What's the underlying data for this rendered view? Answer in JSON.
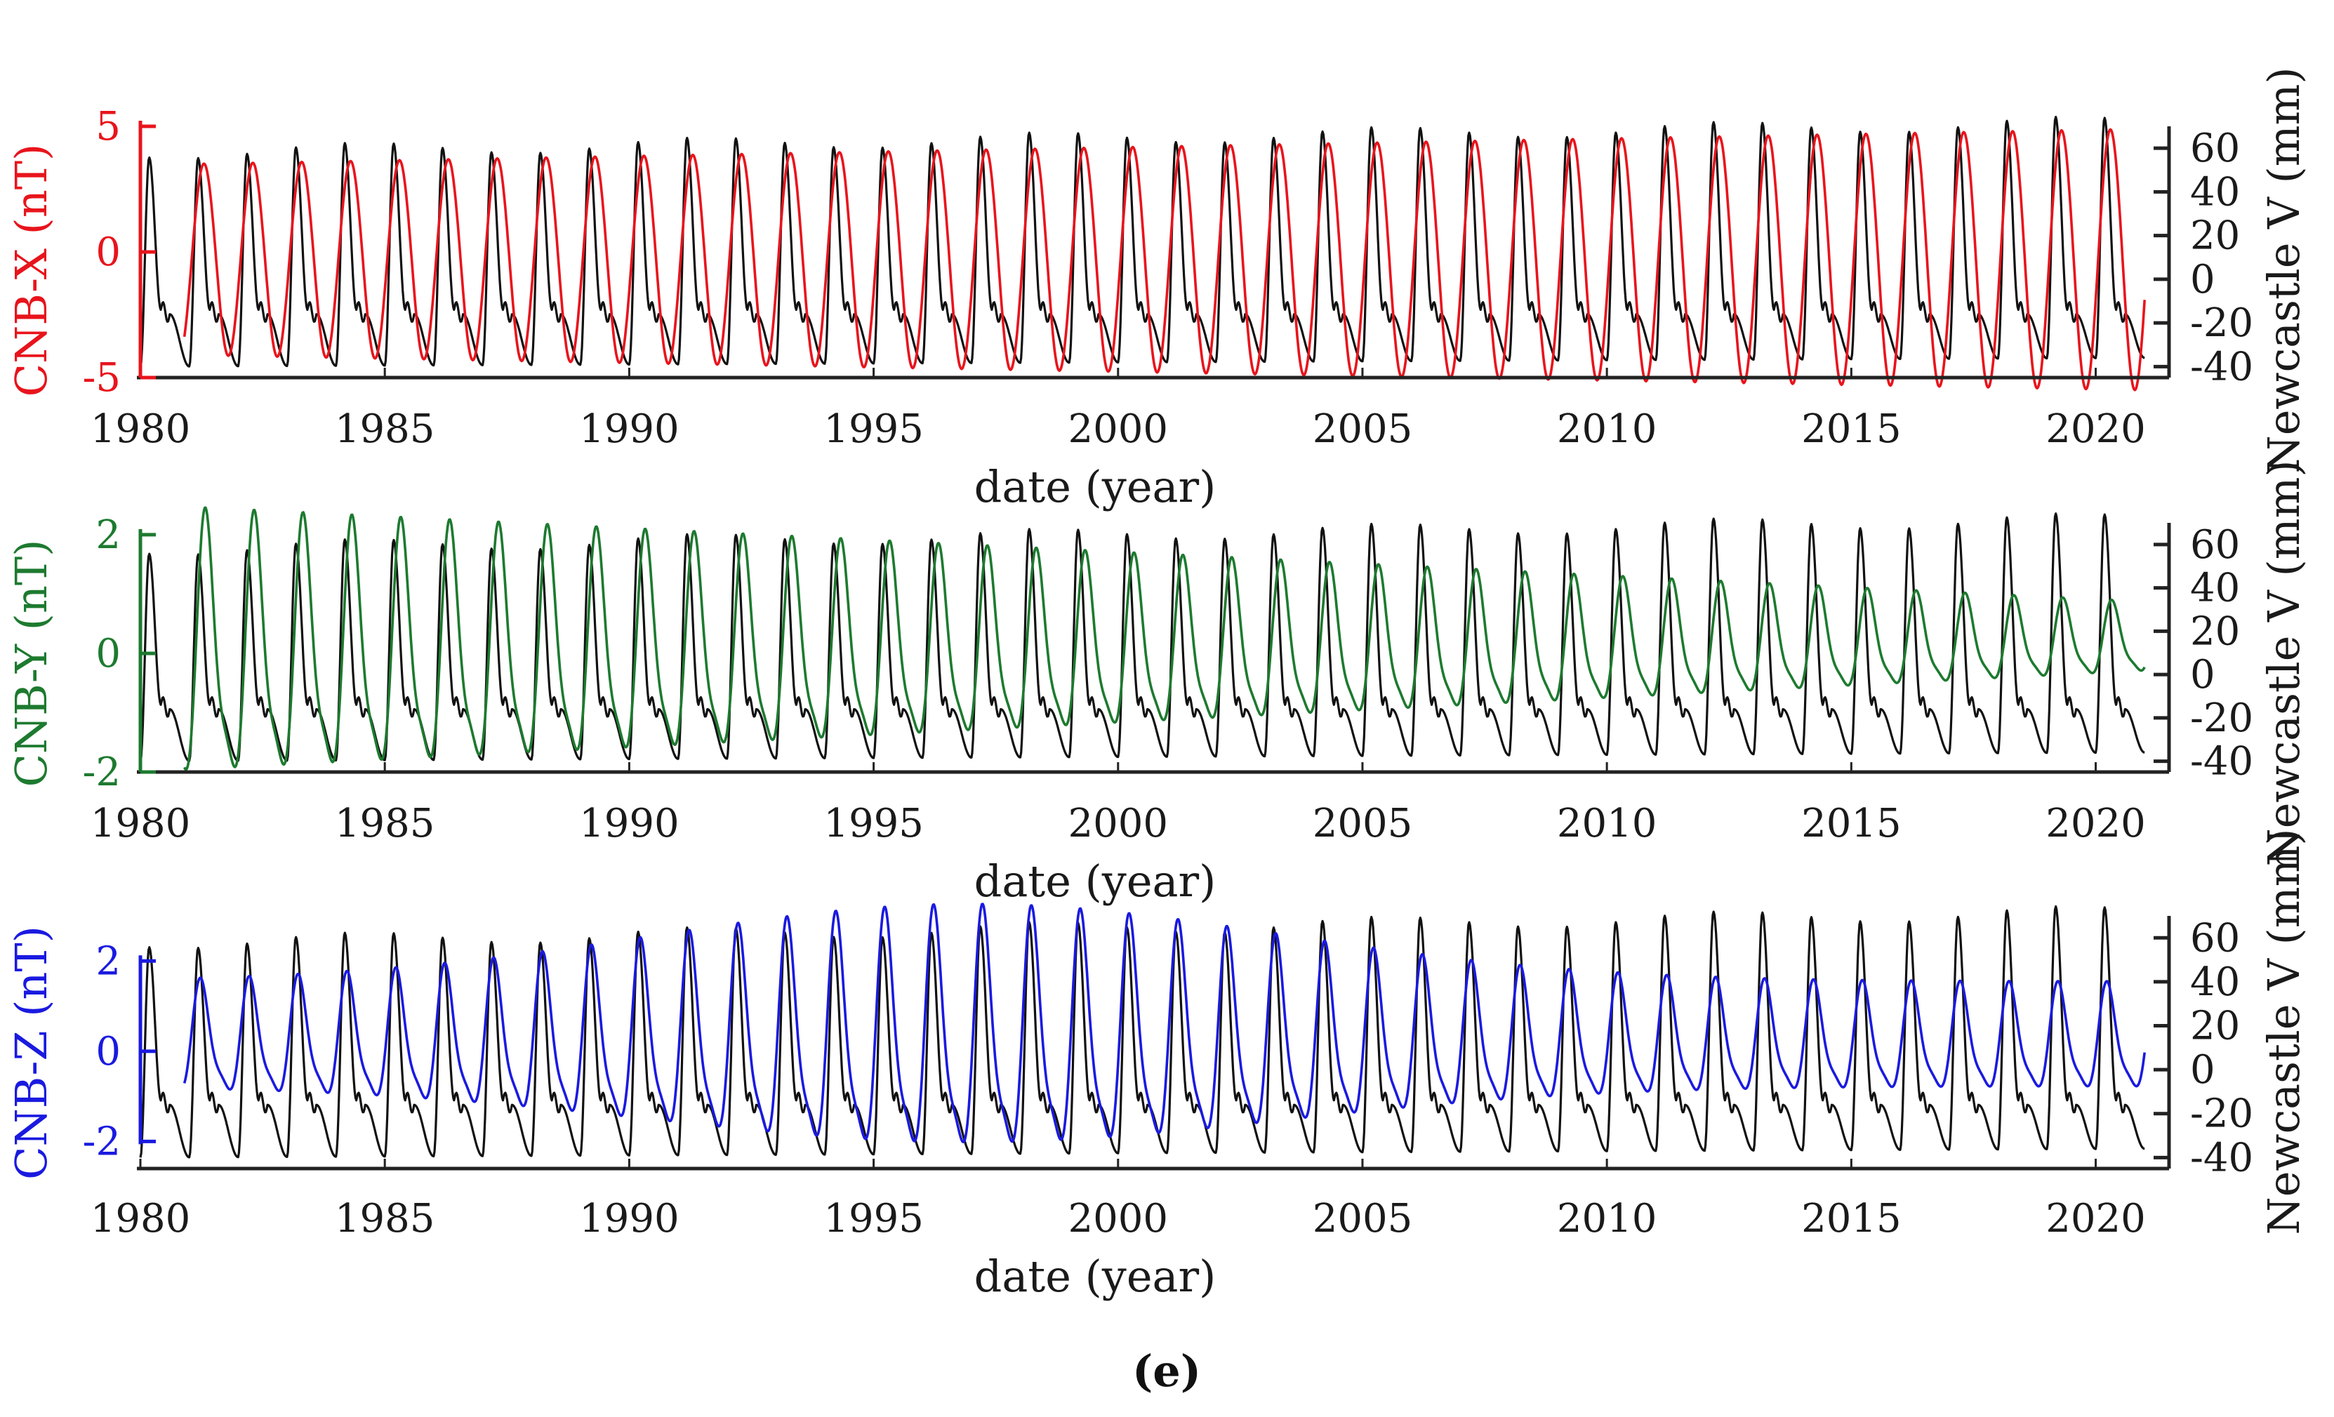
{
  "figure_label": "(e)",
  "chart_data": [
    {
      "type": "line",
      "panel": "CNB-X",
      "xlabel": "date (year)",
      "ylabel_left": "CNB-X (nT)",
      "ylabel_right": "Newcastle V (mm)",
      "xlim": [
        1980,
        2021.5
      ],
      "xticks": [
        1980,
        1985,
        1990,
        1995,
        2000,
        2005,
        2010,
        2015,
        2020
      ],
      "ylim_left": [
        -5,
        5
      ],
      "yticks_left": [
        -5,
        0,
        5
      ],
      "ylim_right": [
        -45,
        70
      ],
      "yticks_right": [
        -40,
        -20,
        0,
        20,
        40,
        60
      ],
      "colors": {
        "left": "#e8141c",
        "right": "#111111"
      },
      "series": [
        {
          "name": "Newcastle V",
          "axis": "right",
          "start_year": 1980.0,
          "end_year": 2021.0,
          "period_years": 1.0,
          "peak_start": 58,
          "peak_end": 72,
          "trough_start": -40,
          "trough_end": -36,
          "shoulder": -14
        },
        {
          "name": "CNB-X",
          "axis": "left",
          "start_year": 1980.9,
          "end_year": 2021.0,
          "period_years": 1.0,
          "amp_start": 3.8,
          "amp_end": 5.2,
          "offset": -0.3,
          "phase_shift_years": 0.4
        }
      ]
    },
    {
      "type": "line",
      "panel": "CNB-Y",
      "xlabel": "date (year)",
      "ylabel_left": "CNB-Y (nT)",
      "ylabel_right": "Newcastle V (mm)",
      "xlim": [
        1980,
        2021.5
      ],
      "xticks": [
        1980,
        1985,
        1990,
        1995,
        2000,
        2005,
        2010,
        2015,
        2020
      ],
      "ylim_left": [
        -2,
        2.2
      ],
      "yticks_left": [
        -2,
        0,
        2
      ],
      "ylim_right": [
        -45,
        70
      ],
      "yticks_right": [
        -40,
        -20,
        0,
        20,
        40,
        60
      ],
      "colors": {
        "left": "#1d7a2f",
        "right": "#111111"
      },
      "series": [
        {
          "name": "Newcastle V",
          "axis": "right",
          "start_year": 1980.0,
          "end_year": 2021.0,
          "period_years": 1.0,
          "peak_start": 58,
          "peak_end": 72,
          "trough_start": -40,
          "trough_end": -36,
          "shoulder": -14
        },
        {
          "name": "CNB-Y",
          "axis": "left",
          "start_year": 1980.9,
          "end_year": 2021.0,
          "period_years": 1.0,
          "amp_start": 2.1,
          "amp_end": 0.55,
          "offset_start": -0.1,
          "offset_end": 0.2,
          "phase_shift_years": 0.45
        }
      ]
    },
    {
      "type": "line",
      "panel": "CNB-Z",
      "xlabel": "date (year)",
      "ylabel_left": "CNB-Z (nT)",
      "ylabel_right": "Newcastle V (mm)",
      "xlim": [
        1980,
        2021.5
      ],
      "xticks": [
        1980,
        1985,
        1990,
        1995,
        2000,
        2005,
        2010,
        2015,
        2020
      ],
      "ylim_left": [
        -2.6,
        3
      ],
      "yticks_left": [
        -2,
        0,
        2
      ],
      "ylim_right": [
        -45,
        70
      ],
      "yticks_right": [
        -40,
        -20,
        0,
        20,
        40,
        60
      ],
      "colors": {
        "left": "#1a1ae0",
        "right": "#111111"
      },
      "series": [
        {
          "name": "Newcastle V",
          "axis": "right",
          "start_year": 1980.0,
          "end_year": 2021.0,
          "period_years": 1.0,
          "peak_start": 58,
          "peak_end": 72,
          "trough_start": -40,
          "trough_end": -36,
          "shoulder": -14
        },
        {
          "name": "CNB-Z",
          "axis": "left",
          "start_year": 1980.9,
          "end_year": 2021.0,
          "period_years": 1.0,
          "amp_peak_year": 1997,
          "amp_min": 1.1,
          "amp_max": 2.5,
          "offset": 0.2,
          "phase_shift_years": 0.35
        }
      ]
    }
  ]
}
